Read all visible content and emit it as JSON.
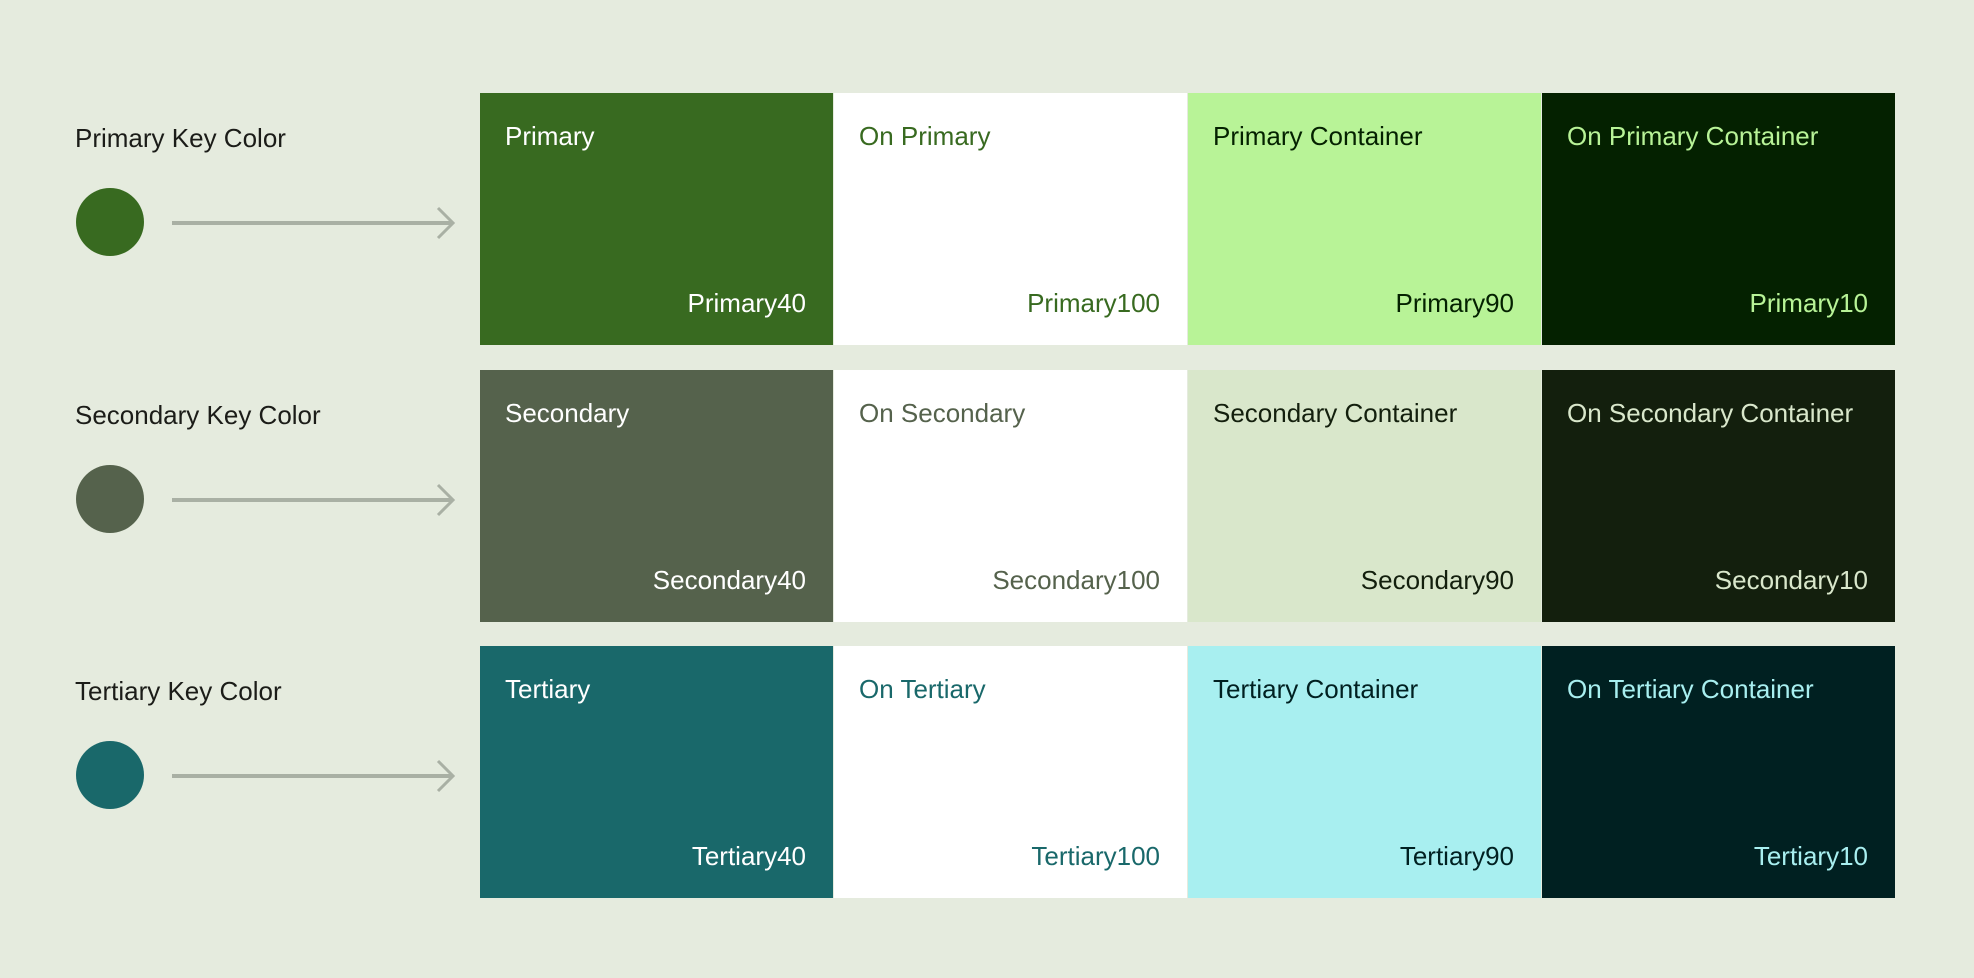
{
  "background": "#E5EBDE",
  "rows": [
    {
      "key_label": "Primary Key Color",
      "key_color": "#386A20",
      "tiles": [
        {
          "name": "Primary",
          "tone": "Primary40",
          "bg": "#386A20",
          "fg": "#FFFFFF"
        },
        {
          "name": "On Primary",
          "tone": "Primary100",
          "bg": "#FFFFFF",
          "fg": "#386A20"
        },
        {
          "name": "Primary Container",
          "tone": "Primary90",
          "bg": "#B8F397",
          "fg": "#042100"
        },
        {
          "name": "On Primary Container",
          "tone": "Primary10",
          "bg": "#042100",
          "fg": "#B8F397"
        }
      ]
    },
    {
      "key_label": "Secondary Key Color",
      "key_color": "#55624C",
      "tiles": [
        {
          "name": "Secondary",
          "tone": "Secondary40",
          "bg": "#55624C",
          "fg": "#FFFFFF"
        },
        {
          "name": "On Secondary",
          "tone": "Secondary100",
          "bg": "#FFFFFF",
          "fg": "#55624C"
        },
        {
          "name": "Secondary Container",
          "tone": "Secondary90",
          "bg": "#D9E7CB",
          "fg": "#131F0D"
        },
        {
          "name": "On Secondary Container",
          "tone": "Secondary10",
          "bg": "#131F0D",
          "fg": "#D9E7CB"
        }
      ]
    },
    {
      "key_label": "Tertiary Key Color",
      "key_color": "#19686A",
      "tiles": [
        {
          "name": "Tertiary",
          "tone": "Tertiary40",
          "bg": "#19686A",
          "fg": "#FFFFFF"
        },
        {
          "name": "On Tertiary",
          "tone": "Tertiary100",
          "bg": "#FFFFFF",
          "fg": "#19686A"
        },
        {
          "name": "Tertiary Container",
          "tone": "Tertiary90",
          "bg": "#A8EFF0",
          "fg": "#002021"
        },
        {
          "name": "On Tertiary Container",
          "tone": "Tertiary10",
          "bg": "#002021",
          "fg": "#A8EFF0"
        }
      ]
    }
  ],
  "arrow_color": "#A9B0A4"
}
